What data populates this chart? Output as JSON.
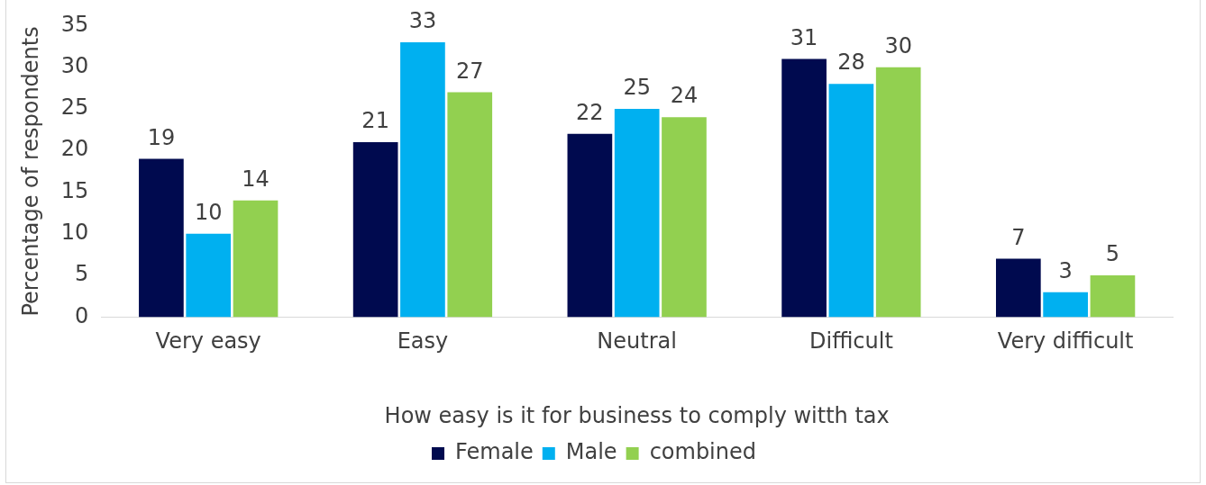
{
  "chart_data": {
    "type": "bar",
    "xlabel": "How easy is it for business to comply witth tax",
    "ylabel": "Percentage of respondents",
    "categories": [
      "Very easy",
      "Easy",
      "Neutral",
      "Difficult",
      "Very difficult"
    ],
    "series": [
      {
        "name": "Female",
        "color": "#000a4f",
        "values": [
          19,
          21,
          22,
          31,
          7
        ]
      },
      {
        "name": "Male",
        "color": "#00b0f0",
        "values": [
          10,
          33,
          25,
          28,
          3
        ]
      },
      {
        "name": "combined",
        "color": "#92d050",
        "values": [
          14,
          27,
          24,
          30,
          5
        ]
      }
    ],
    "ylim": [
      0,
      35
    ],
    "yticks": [
      0,
      5,
      10,
      15,
      20,
      25,
      30,
      35
    ],
    "grid": false,
    "legend": "bottom",
    "data_labels": true
  }
}
